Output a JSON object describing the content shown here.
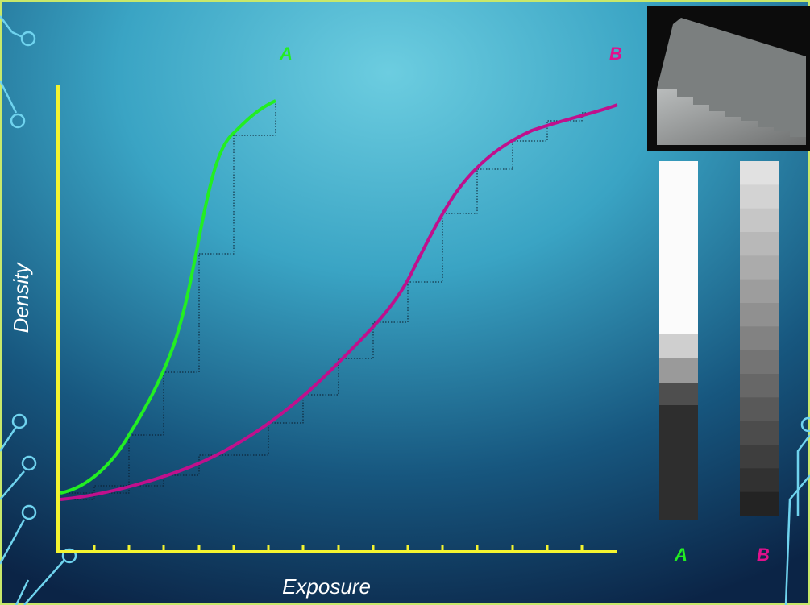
{
  "curve_labels": {
    "a": "A",
    "b": "B"
  },
  "axes": {
    "y_title": "Density",
    "x_title": "Exposure"
  },
  "strip_labels": {
    "a": "A",
    "b": "B"
  }
}
